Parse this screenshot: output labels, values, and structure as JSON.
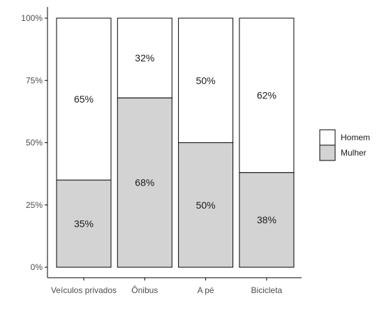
{
  "chart_data": {
    "type": "bar",
    "stacked": true,
    "percent": true,
    "categories": [
      "Veículos privados",
      "Ônibus",
      "A pé",
      "Bicicleta"
    ],
    "series": [
      {
        "name": "Mulher",
        "values": [
          35,
          68,
          50,
          38
        ],
        "labels": [
          "35%",
          "68%",
          "50%",
          "38%"
        ],
        "color": "#d3d3d3"
      },
      {
        "name": "Homem",
        "values": [
          65,
          32,
          50,
          62
        ],
        "labels": [
          "65%",
          "32%",
          "50%",
          "62%"
        ],
        "color": "#ffffff"
      }
    ],
    "ylim": [
      0,
      100
    ],
    "y_ticks": [
      0,
      25,
      50,
      75,
      100
    ],
    "y_tick_labels": [
      "0%",
      "25%",
      "50%",
      "75%",
      "100%"
    ],
    "legend": {
      "position": "right",
      "entries": [
        "Homem",
        "Mulher"
      ]
    },
    "grid": false,
    "colors": {
      "bar_border": "#000000",
      "axis": "#000000",
      "tick_text": "#4d4d4d"
    }
  }
}
